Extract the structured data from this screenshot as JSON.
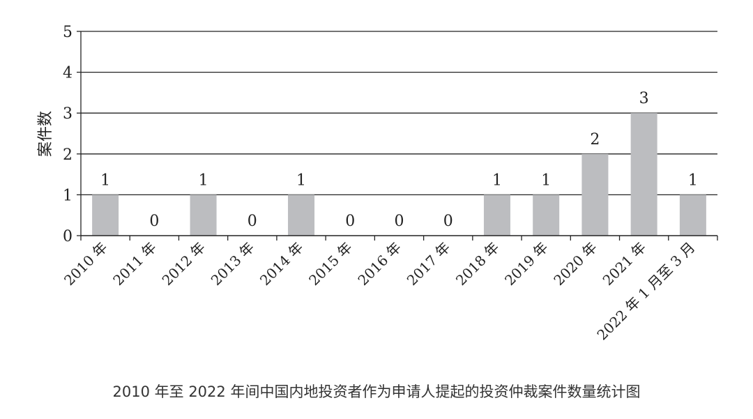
{
  "chart_data": {
    "type": "bar",
    "categories": [
      "2010 年",
      "2011 年",
      "2012 年",
      "2013 年",
      "2014 年",
      "2015 年",
      "2016 年",
      "2017 年",
      "2018 年",
      "2019 年",
      "2020 年",
      "2021 年",
      "2022 年 1 月至 3 月"
    ],
    "values": [
      1,
      0,
      1,
      0,
      1,
      0,
      0,
      0,
      1,
      1,
      2,
      3,
      1
    ],
    "ylabel": "案件数",
    "xlabel": "",
    "ylim": [
      0,
      5
    ],
    "yticks": [
      0,
      1,
      2,
      3,
      4,
      5
    ],
    "grid": true,
    "bar_color": "#bcbdc0",
    "grid_color": "#222222",
    "caption": "2010 年至 2022 年间中国内地投资者作为申请人提起的投资仲裁案件数量统计图"
  }
}
